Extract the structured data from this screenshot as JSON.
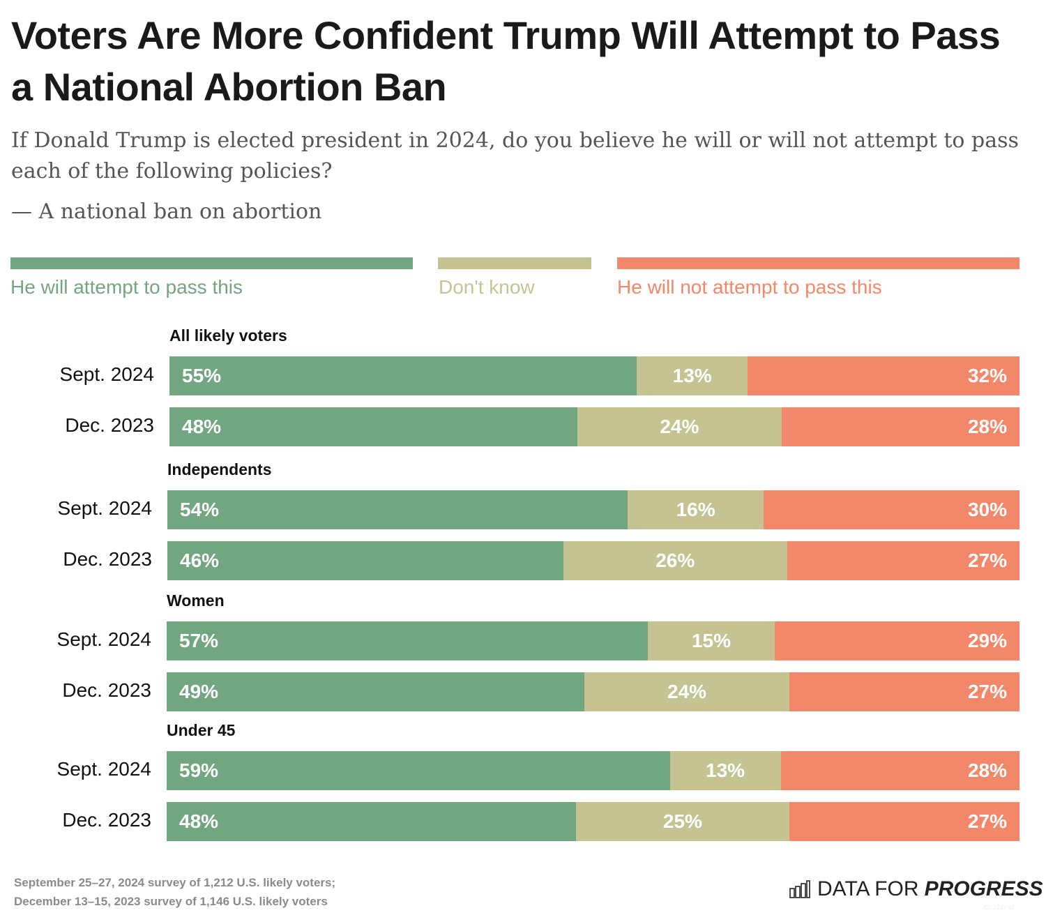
{
  "chart_data": {
    "type": "bar",
    "stacked": true,
    "orientation": "horizontal",
    "title": "Voters Are More Confident Trump Will Attempt to Pass a National Abortion Ban",
    "subtitle": "If Donald Trump is elected president in 2024, do you believe he will or will not attempt to pass each of the following policies?",
    "question_item": "— A national ban on abortion",
    "legend_placement": "top",
    "series": [
      {
        "name": "He will attempt to pass this",
        "color": "#72a680"
      },
      {
        "name": "Don't know",
        "color": "#c5c392"
      },
      {
        "name": "He will not attempt to pass this",
        "color": "#f28869"
      }
    ],
    "groups": [
      {
        "label": "All likely voters",
        "rows": [
          {
            "label": "Sept. 2024",
            "values": [
              55,
              13,
              32
            ]
          },
          {
            "label": "Dec. 2023",
            "values": [
              48,
              24,
              28
            ]
          }
        ]
      },
      {
        "label": "Independents",
        "rows": [
          {
            "label": "Sept. 2024",
            "values": [
              54,
              16,
              30
            ]
          },
          {
            "label": "Dec. 2023",
            "values": [
              46,
              26,
              27
            ]
          }
        ]
      },
      {
        "label": "Women",
        "rows": [
          {
            "label": "Sept. 2024",
            "values": [
              57,
              15,
              29
            ]
          },
          {
            "label": "Dec. 2023",
            "values": [
              49,
              24,
              27
            ]
          }
        ]
      },
      {
        "label": "Under 45",
        "rows": [
          {
            "label": "Sept. 2024",
            "values": [
              59,
              13,
              28
            ]
          },
          {
            "label": "Dec. 2023",
            "values": [
              48,
              25,
              27
            ]
          }
        ]
      }
    ],
    "value_suffix": "%"
  },
  "footer": {
    "line1": "September 25–27, 2024 survey of 1,212 U.S. likely voters;",
    "line2": "December 13–15, 2023 survey of 1,146 U.S. likely voters"
  },
  "logo": {
    "light": "DATA FOR",
    "bold": "PROGRESS",
    "id": "ID: J23Y42"
  }
}
